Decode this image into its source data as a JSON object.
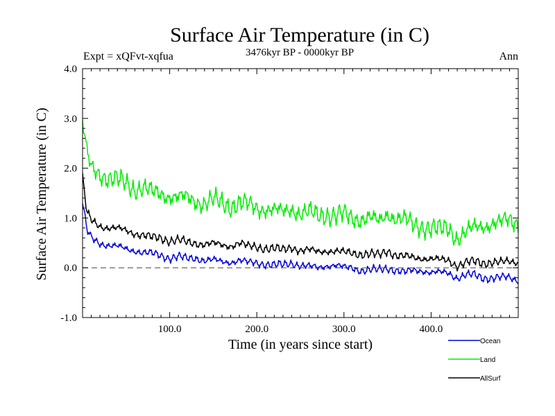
{
  "chart_data": {
    "type": "line",
    "title": "Surface Air Temperature (in C)",
    "subtitle": "3476kyr BP - 0000kyr BP",
    "left_label": "Expt = xQFvt-xqfua",
    "right_label": "Ann",
    "xlabel": "Time (in years since start)",
    "ylabel": "Surface Air Temperature (in C)",
    "xlim": [
      0,
      500
    ],
    "ylim": [
      -1.0,
      4.0
    ],
    "xticks": [
      100,
      200,
      300,
      400
    ],
    "xtick_labels": [
      "100.0",
      "200.0",
      "300.0",
      "400.0"
    ],
    "yticks": [
      -1.0,
      0.0,
      1.0,
      2.0,
      3.0,
      4.0
    ],
    "ytick_labels": [
      "-1.0",
      "0.0",
      "1.0",
      "2.0",
      "3.0",
      "4.0"
    ],
    "reference_line": 0.0,
    "legend_position": "bottom-right",
    "series": [
      {
        "name": "Ocean",
        "color": "#0000dd",
        "x": [
          0,
          5,
          10,
          20,
          30,
          40,
          50,
          60,
          70,
          80,
          90,
          100,
          110,
          120,
          130,
          140,
          150,
          160,
          170,
          180,
          190,
          200,
          210,
          220,
          230,
          240,
          250,
          260,
          270,
          280,
          290,
          300,
          310,
          320,
          330,
          340,
          350,
          360,
          370,
          380,
          390,
          400,
          410,
          420,
          430,
          440,
          450,
          460,
          470,
          480,
          490,
          500
        ],
        "values": [
          1.3,
          0.75,
          0.6,
          0.5,
          0.45,
          0.42,
          0.38,
          0.35,
          0.3,
          0.28,
          0.25,
          0.2,
          0.22,
          0.18,
          0.2,
          0.15,
          0.15,
          0.12,
          0.12,
          0.15,
          0.1,
          0.1,
          0.08,
          0.05,
          0.05,
          0.1,
          0.05,
          0.02,
          0.0,
          0.05,
          0.05,
          0.0,
          0.0,
          -0.05,
          -0.05,
          -0.05,
          0.0,
          -0.05,
          -0.1,
          -0.05,
          -0.05,
          -0.1,
          -0.1,
          -0.1,
          -0.2,
          -0.15,
          -0.15,
          -0.2,
          -0.2,
          -0.2,
          -0.2,
          -0.25
        ]
      },
      {
        "name": "Land",
        "color": "#00ee00",
        "x": [
          0,
          5,
          10,
          20,
          30,
          40,
          50,
          60,
          70,
          80,
          90,
          100,
          110,
          120,
          130,
          140,
          150,
          160,
          170,
          180,
          190,
          200,
          210,
          220,
          230,
          240,
          250,
          260,
          270,
          280,
          290,
          300,
          310,
          320,
          330,
          340,
          350,
          360,
          370,
          380,
          390,
          400,
          410,
          420,
          430,
          440,
          450,
          460,
          470,
          480,
          490,
          500
        ],
        "values": [
          2.9,
          2.3,
          2.0,
          1.9,
          1.8,
          1.75,
          1.7,
          1.6,
          1.6,
          1.5,
          1.5,
          1.45,
          1.4,
          1.4,
          1.35,
          1.3,
          1.35,
          1.3,
          1.25,
          1.3,
          1.25,
          1.2,
          1.2,
          1.15,
          1.1,
          1.2,
          1.1,
          1.1,
          1.05,
          1.1,
          1.05,
          1.05,
          1.0,
          1.0,
          1.0,
          0.9,
          1.1,
          1.0,
          0.95,
          0.85,
          0.85,
          0.8,
          0.75,
          0.8,
          0.6,
          0.7,
          0.8,
          0.85,
          0.9,
          0.9,
          0.95,
          0.9
        ]
      },
      {
        "name": "AllSurf",
        "color": "#000000",
        "x": [
          0,
          5,
          10,
          20,
          30,
          40,
          50,
          60,
          70,
          80,
          90,
          100,
          110,
          120,
          130,
          140,
          150,
          160,
          170,
          180,
          190,
          200,
          210,
          220,
          230,
          240,
          250,
          260,
          270,
          280,
          290,
          300,
          310,
          320,
          330,
          340,
          350,
          360,
          370,
          380,
          390,
          400,
          410,
          420,
          430,
          440,
          450,
          460,
          470,
          480,
          490,
          500
        ],
        "values": [
          1.8,
          1.1,
          0.95,
          0.85,
          0.8,
          0.78,
          0.75,
          0.7,
          0.65,
          0.6,
          0.6,
          0.55,
          0.55,
          0.5,
          0.5,
          0.48,
          0.48,
          0.45,
          0.45,
          0.5,
          0.42,
          0.42,
          0.4,
          0.38,
          0.35,
          0.42,
          0.35,
          0.35,
          0.32,
          0.35,
          0.33,
          0.3,
          0.3,
          0.28,
          0.27,
          0.25,
          0.35,
          0.25,
          0.22,
          0.2,
          0.2,
          0.18,
          0.15,
          0.15,
          0.05,
          0.1,
          0.12,
          0.1,
          0.12,
          0.1,
          0.12,
          0.12
        ]
      }
    ]
  }
}
